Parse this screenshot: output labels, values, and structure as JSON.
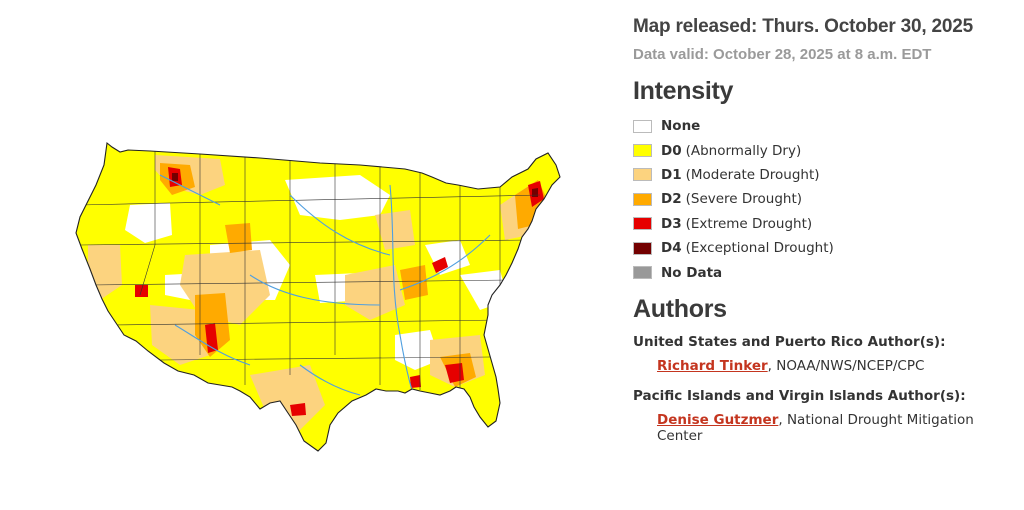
{
  "header": {
    "released": "Map released: Thurs. October 30, 2025",
    "valid": "Data valid: October 28, 2025 at 8 a.m. EDT"
  },
  "intensity": {
    "title": "Intensity",
    "items": [
      {
        "code": "None",
        "label": "",
        "color": "#ffffff"
      },
      {
        "code": "D0",
        "label": "(Abnormally Dry)",
        "color": "#ffff00"
      },
      {
        "code": "D1",
        "label": "(Moderate Drought)",
        "color": "#fcd37f"
      },
      {
        "code": "D2",
        "label": "(Severe Drought)",
        "color": "#ffaa00"
      },
      {
        "code": "D3",
        "label": "(Extreme Drought)",
        "color": "#e60000"
      },
      {
        "code": "D4",
        "label": "(Exceptional Drought)",
        "color": "#730000"
      },
      {
        "code": "No Data",
        "label": "",
        "color": "#999999"
      }
    ]
  },
  "authors": {
    "title": "Authors",
    "groups": [
      {
        "role": "United States and Puerto Rico Author(s):",
        "name": "Richard Tinker",
        "affiliation": ", NOAA/NWS/NCEP/CPC"
      },
      {
        "role": "Pacific Islands and Virgin Islands Author(s):",
        "name": "Denise Gutzmer",
        "affiliation": ", National Drought Mitigation Center"
      }
    ]
  },
  "map": {
    "colors": {
      "none": "#ffffff",
      "d0": "#ffff00",
      "d1": "#fcd37f",
      "d2": "#ffaa00",
      "d3": "#e60000",
      "d4": "#730000",
      "border": "#222222",
      "water": "#4f9fe0"
    }
  }
}
